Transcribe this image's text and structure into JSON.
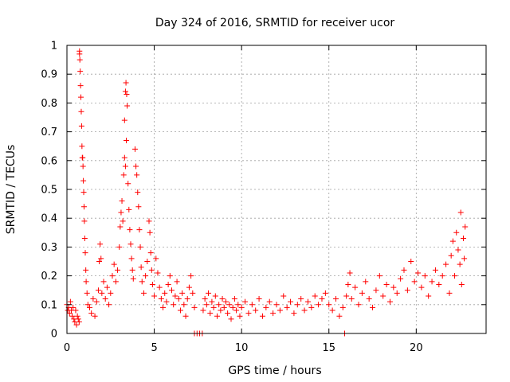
{
  "chart_data": {
    "type": "scatter",
    "title": "Day 324 of 2016, SRMTID for receiver ucor",
    "xlabel": "GPS time / hours",
    "ylabel": "SRMTID / TECUs",
    "xlim": [
      0,
      24
    ],
    "ylim": [
      0,
      1
    ],
    "xticks": [
      0,
      5,
      10,
      15,
      20
    ],
    "xtick_labels": [
      "0",
      "5",
      "10",
      "15",
      "20"
    ],
    "yticks": [
      0,
      0.1,
      0.2,
      0.3,
      0.4,
      0.5,
      0.6,
      0.7,
      0.8,
      0.9,
      1
    ],
    "ytick_labels": [
      "0",
      "0.1",
      "0.2",
      "0.3",
      "0.4",
      "0.5",
      "0.6",
      "0.7",
      "0.8",
      "0.9",
      "1"
    ],
    "grid": true,
    "marker": "plus",
    "series": [
      {
        "name": "SRMTID",
        "color": "#ff0000",
        "points": [
          [
            0.0,
            0.1
          ],
          [
            0.05,
            0.08
          ],
          [
            0.1,
            0.09
          ],
          [
            0.15,
            0.07
          ],
          [
            0.2,
            0.11
          ],
          [
            0.25,
            0.08
          ],
          [
            0.3,
            0.06
          ],
          [
            0.35,
            0.09
          ],
          [
            0.4,
            0.05
          ],
          [
            0.45,
            0.04
          ],
          [
            0.5,
            0.08
          ],
          [
            0.55,
            0.03
          ],
          [
            0.6,
            0.06
          ],
          [
            0.65,
            0.05
          ],
          [
            0.7,
            0.04
          ],
          [
            0.72,
            0.97
          ],
          [
            0.74,
            0.95
          ],
          [
            0.76,
            0.91
          ],
          [
            0.78,
            0.86
          ],
          [
            0.8,
            0.82
          ],
          [
            0.72,
            0.98
          ],
          [
            0.82,
            0.77
          ],
          [
            0.84,
            0.72
          ],
          [
            0.86,
            0.65
          ],
          [
            0.88,
            0.61
          ],
          [
            0.9,
            0.61
          ],
          [
            0.92,
            0.58
          ],
          [
            0.94,
            0.53
          ],
          [
            0.96,
            0.49
          ],
          [
            0.98,
            0.44
          ],
          [
            1.0,
            0.39
          ],
          [
            1.02,
            0.33
          ],
          [
            1.05,
            0.28
          ],
          [
            1.08,
            0.22
          ],
          [
            1.1,
            0.18
          ],
          [
            1.15,
            0.14
          ],
          [
            1.2,
            0.1
          ],
          [
            1.3,
            0.09
          ],
          [
            1.4,
            0.07
          ],
          [
            1.5,
            0.12
          ],
          [
            1.6,
            0.06
          ],
          [
            1.7,
            0.11
          ],
          [
            1.8,
            0.15
          ],
          [
            1.85,
            0.25
          ],
          [
            1.9,
            0.31
          ],
          [
            1.95,
            0.26
          ],
          [
            2.0,
            0.14
          ],
          [
            2.1,
            0.18
          ],
          [
            2.2,
            0.12
          ],
          [
            2.3,
            0.16
          ],
          [
            2.4,
            0.1
          ],
          [
            2.5,
            0.14
          ],
          [
            2.6,
            0.2
          ],
          [
            2.7,
            0.24
          ],
          [
            2.8,
            0.18
          ],
          [
            2.9,
            0.22
          ],
          [
            3.0,
            0.3
          ],
          [
            3.05,
            0.37
          ],
          [
            3.1,
            0.42
          ],
          [
            3.15,
            0.46
          ],
          [
            3.2,
            0.39
          ],
          [
            3.25,
            0.55
          ],
          [
            3.3,
            0.61
          ],
          [
            3.35,
            0.58
          ],
          [
            3.4,
            0.67
          ],
          [
            3.3,
            0.74
          ],
          [
            3.35,
            0.84
          ],
          [
            3.38,
            0.87
          ],
          [
            3.42,
            0.83
          ],
          [
            3.45,
            0.79
          ],
          [
            3.5,
            0.52
          ],
          [
            3.55,
            0.43
          ],
          [
            3.6,
            0.36
          ],
          [
            3.65,
            0.31
          ],
          [
            3.7,
            0.26
          ],
          [
            3.75,
            0.22
          ],
          [
            3.8,
            0.19
          ],
          [
            3.9,
            0.64
          ],
          [
            3.95,
            0.58
          ],
          [
            4.0,
            0.55
          ],
          [
            4.05,
            0.49
          ],
          [
            4.1,
            0.44
          ],
          [
            4.15,
            0.36
          ],
          [
            4.2,
            0.3
          ],
          [
            4.25,
            0.23
          ],
          [
            4.3,
            0.18
          ],
          [
            4.4,
            0.14
          ],
          [
            4.5,
            0.2
          ],
          [
            4.6,
            0.25
          ],
          [
            4.7,
            0.39
          ],
          [
            4.75,
            0.35
          ],
          [
            4.8,
            0.28
          ],
          [
            4.85,
            0.22
          ],
          [
            4.9,
            0.17
          ],
          [
            5.0,
            0.13
          ],
          [
            5.1,
            0.26
          ],
          [
            5.2,
            0.21
          ],
          [
            5.3,
            0.16
          ],
          [
            5.4,
            0.12
          ],
          [
            5.5,
            0.09
          ],
          [
            5.6,
            0.14
          ],
          [
            5.7,
            0.11
          ],
          [
            5.8,
            0.17
          ],
          [
            5.9,
            0.2
          ],
          [
            6.0,
            0.15
          ],
          [
            6.1,
            0.1
          ],
          [
            6.2,
            0.13
          ],
          [
            6.3,
            0.18
          ],
          [
            6.4,
            0.12
          ],
          [
            6.5,
            0.08
          ],
          [
            6.6,
            0.14
          ],
          [
            6.7,
            0.1
          ],
          [
            6.8,
            0.06
          ],
          [
            6.9,
            0.12
          ],
          [
            7.0,
            0.16
          ],
          [
            7.1,
            0.2
          ],
          [
            7.2,
            0.14
          ],
          [
            7.3,
            0.09
          ],
          [
            7.3,
            0.0
          ],
          [
            7.45,
            0.0
          ],
          [
            7.6,
            0.0
          ],
          [
            7.75,
            0.0
          ],
          [
            7.8,
            0.08
          ],
          [
            7.9,
            0.12
          ],
          [
            8.0,
            0.1
          ],
          [
            8.1,
            0.14
          ],
          [
            8.2,
            0.07
          ],
          [
            8.3,
            0.11
          ],
          [
            8.4,
            0.09
          ],
          [
            8.5,
            0.13
          ],
          [
            8.6,
            0.06
          ],
          [
            8.7,
            0.1
          ],
          [
            8.8,
            0.08
          ],
          [
            8.9,
            0.12
          ],
          [
            9.0,
            0.09
          ],
          [
            9.1,
            0.11
          ],
          [
            9.2,
            0.07
          ],
          [
            9.3,
            0.1
          ],
          [
            9.4,
            0.05
          ],
          [
            9.5,
            0.09
          ],
          [
            9.6,
            0.12
          ],
          [
            9.7,
            0.08
          ],
          [
            9.8,
            0.1
          ],
          [
            9.9,
            0.06
          ],
          [
            10.0,
            0.09
          ],
          [
            10.2,
            0.11
          ],
          [
            10.4,
            0.07
          ],
          [
            10.6,
            0.1
          ],
          [
            10.8,
            0.08
          ],
          [
            11.0,
            0.12
          ],
          [
            11.2,
            0.06
          ],
          [
            11.4,
            0.09
          ],
          [
            11.6,
            0.11
          ],
          [
            11.8,
            0.07
          ],
          [
            12.0,
            0.1
          ],
          [
            12.2,
            0.08
          ],
          [
            12.4,
            0.13
          ],
          [
            12.6,
            0.09
          ],
          [
            12.8,
            0.11
          ],
          [
            13.0,
            0.07
          ],
          [
            13.2,
            0.1
          ],
          [
            13.4,
            0.12
          ],
          [
            13.6,
            0.08
          ],
          [
            13.8,
            0.11
          ],
          [
            14.0,
            0.09
          ],
          [
            14.2,
            0.13
          ],
          [
            14.4,
            0.1
          ],
          [
            14.6,
            0.12
          ],
          [
            14.8,
            0.14
          ],
          [
            15.0,
            0.1
          ],
          [
            15.2,
            0.08
          ],
          [
            15.4,
            0.12
          ],
          [
            15.6,
            0.06
          ],
          [
            15.8,
            0.09
          ],
          [
            15.9,
            0.0
          ],
          [
            16.0,
            0.13
          ],
          [
            16.1,
            0.17
          ],
          [
            16.2,
            0.21
          ],
          [
            16.3,
            0.12
          ],
          [
            16.5,
            0.16
          ],
          [
            16.7,
            0.1
          ],
          [
            16.9,
            0.14
          ],
          [
            17.1,
            0.18
          ],
          [
            17.3,
            0.12
          ],
          [
            17.5,
            0.09
          ],
          [
            17.7,
            0.15
          ],
          [
            17.9,
            0.2
          ],
          [
            18.1,
            0.13
          ],
          [
            18.3,
            0.17
          ],
          [
            18.5,
            0.11
          ],
          [
            18.7,
            0.16
          ],
          [
            18.9,
            0.14
          ],
          [
            19.1,
            0.19
          ],
          [
            19.3,
            0.22
          ],
          [
            19.5,
            0.15
          ],
          [
            19.7,
            0.25
          ],
          [
            19.9,
            0.18
          ],
          [
            20.1,
            0.21
          ],
          [
            20.3,
            0.16
          ],
          [
            20.5,
            0.2
          ],
          [
            20.7,
            0.13
          ],
          [
            20.9,
            0.18
          ],
          [
            21.1,
            0.22
          ],
          [
            21.3,
            0.17
          ],
          [
            21.5,
            0.2
          ],
          [
            21.7,
            0.24
          ],
          [
            21.9,
            0.14
          ],
          [
            22.0,
            0.27
          ],
          [
            22.1,
            0.32
          ],
          [
            22.2,
            0.2
          ],
          [
            22.3,
            0.35
          ],
          [
            22.4,
            0.29
          ],
          [
            22.5,
            0.24
          ],
          [
            22.55,
            0.42
          ],
          [
            22.6,
            0.17
          ],
          [
            22.7,
            0.33
          ],
          [
            22.8,
            0.37
          ],
          [
            22.75,
            0.26
          ]
        ]
      }
    ]
  }
}
